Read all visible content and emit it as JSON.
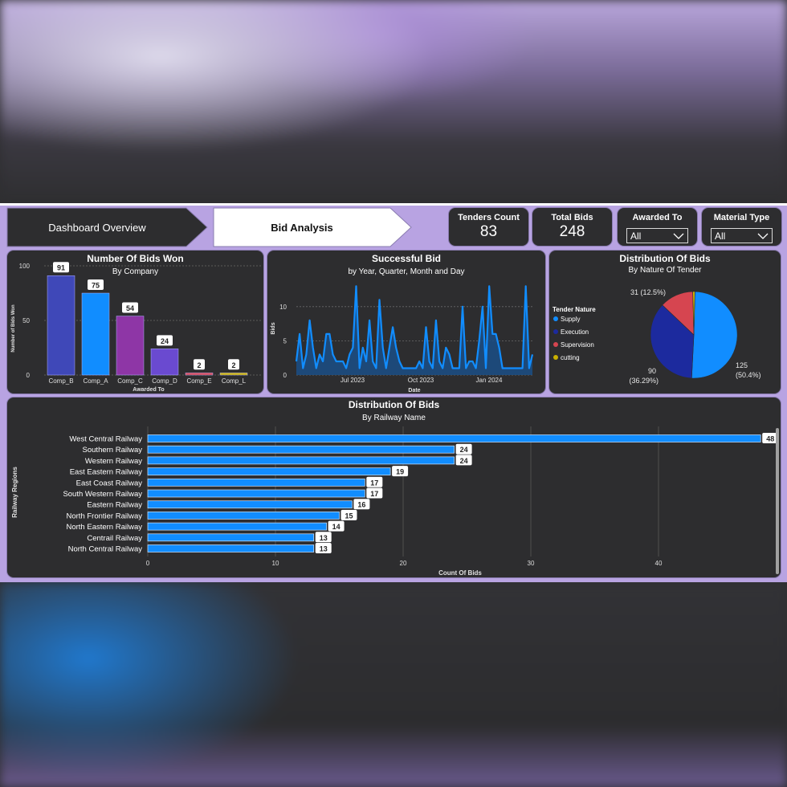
{
  "nav": {
    "overview_label": "Dashboard Overview",
    "active_label": "Bid Analysis"
  },
  "kpis": {
    "tenders_label": "Tenders Count",
    "tenders_value": "83",
    "bids_label": "Total Bids",
    "bids_value": "248"
  },
  "filters": {
    "awarded_label": "Awarded To",
    "awarded_value": "All",
    "material_label": "Material Type",
    "material_value": "All"
  },
  "colors": {
    "accent_blue": "#118dff",
    "panel_bg": "#2d2d2f",
    "frame_purple": "#b8a3e2"
  },
  "chart_data": [
    {
      "id": "bids-won",
      "type": "bar",
      "title": "Number Of Bids Won",
      "subtitle": "By Company",
      "xlabel": "Awarded To",
      "ylabel": "Number of Bids Won",
      "categories": [
        "Comp_B",
        "Comp_A",
        "Comp_C",
        "Comp_D",
        "Comp_E",
        "Comp_L"
      ],
      "values": [
        91,
        75,
        54,
        24,
        2,
        2
      ],
      "colors": [
        "#3f48b8",
        "#118dff",
        "#8e36a6",
        "#6a4ad0",
        "#d64550",
        "#c9b000"
      ],
      "yticks": [
        0,
        50,
        100
      ],
      "ylim": [
        0,
        100
      ],
      "grid": true
    },
    {
      "id": "successful-bid",
      "type": "area",
      "title": "Successful Bid",
      "subtitle": "by Year, Quarter, Month and Day",
      "xlabel": "Date",
      "ylabel": "Bids",
      "xticks": [
        "Jul 2023",
        "Oct 2023",
        "Jan 2024"
      ],
      "yticks": [
        0,
        5,
        10
      ],
      "ylim": [
        0,
        13.5
      ],
      "values": [
        2,
        6,
        1,
        3,
        8,
        4,
        1,
        3,
        2,
        6,
        6,
        3,
        2,
        2,
        2,
        1,
        3,
        4,
        13,
        1,
        4,
        2,
        8,
        2,
        1,
        11,
        4,
        1,
        4,
        7,
        4,
        2,
        1,
        1,
        1,
        1,
        1,
        2,
        1,
        7,
        2,
        1,
        8,
        2,
        1,
        4,
        3,
        1,
        1,
        1,
        10,
        1,
        2,
        2,
        1,
        5,
        10,
        1,
        13,
        6,
        6,
        4,
        1,
        1,
        1,
        1,
        1,
        1,
        1,
        13,
        1,
        3
      ],
      "grid": true
    },
    {
      "id": "nature-of-tender",
      "type": "pie",
      "title": "Distribution Of Bids",
      "subtitle": "By Nature Of Tender",
      "legend_title": "Tender Nature",
      "slices": [
        {
          "label": "Supply",
          "value": 125,
          "text": "125",
          "pct": "(50.4%)",
          "color": "#118dff"
        },
        {
          "label": "Execution",
          "value": 90,
          "text": "90",
          "pct": "(36.29%)",
          "color": "#1c2a9e"
        },
        {
          "label": "Supervision",
          "value": 31,
          "text": "31 (12.5%)",
          "pct": "",
          "color": "#d64550"
        },
        {
          "label": "cutting",
          "value": 2,
          "text": "",
          "pct": "",
          "color": "#c9b000"
        }
      ]
    },
    {
      "id": "railway-name",
      "type": "bar",
      "orientation": "horizontal",
      "title": "Distribution Of Bids",
      "subtitle": "By Railway Name",
      "xlabel": "Count Of Bids",
      "ylabel": "Railway Regions",
      "categories": [
        "West Central Railway",
        "Southern Railway",
        "Western Railway",
        "East Eastern Railway",
        "East Coast Railway",
        "South Western Railway",
        "Eastern Railway",
        "North Frontier Railway",
        "North Eastern Railway",
        "Centrail Railway",
        "North Central Railway"
      ],
      "values": [
        48,
        24,
        24,
        19,
        17,
        17,
        16,
        15,
        14,
        13,
        13
      ],
      "xticks": [
        0,
        10,
        20,
        30,
        40
      ],
      "xlim": [
        0,
        49
      ],
      "color": "#118dff",
      "grid": true
    }
  ]
}
